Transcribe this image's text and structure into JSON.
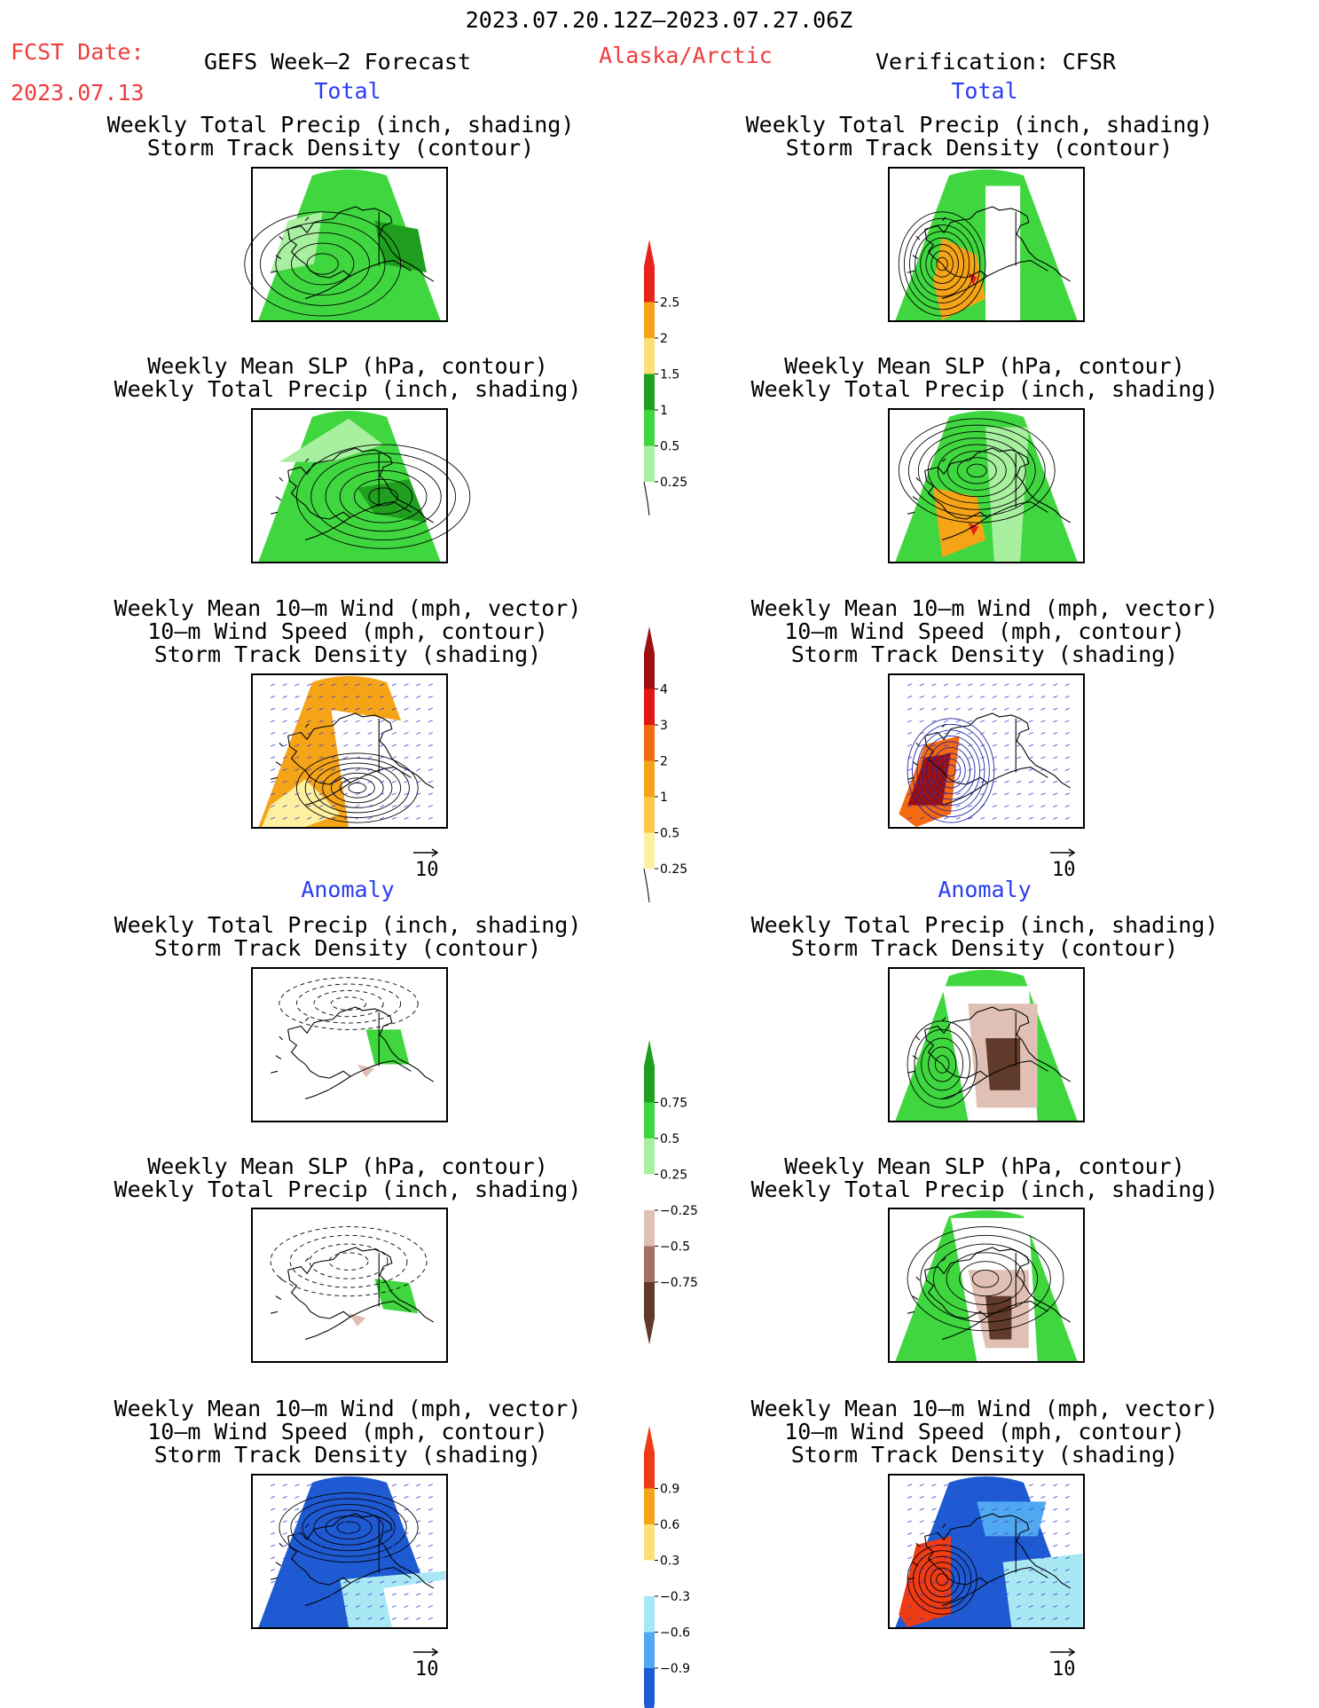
{
  "header": {
    "period": "2023.07.20.12Z–2023.07.27.06Z",
    "fcst_date_label": "FCST Date:",
    "fcst_date_value": "2023.07.13",
    "forecast_title": "GEFS Week–2 Forecast",
    "region": "Alaska/Arctic",
    "verification": "Verification: CFSR"
  },
  "sections": {
    "total": "Total",
    "anomaly": "Anomaly"
  },
  "titles": {
    "precip_track": [
      "Weekly Total Precip (inch, shading)",
      "Storm Track Density (contour)"
    ],
    "slp_precip": [
      "Weekly Mean SLP (hPa, contour)",
      "Weekly Total Precip (inch, shading)"
    ],
    "wind_track": [
      "Weekly Mean 10–m Wind (mph, vector)",
      "10–m Wind Speed (mph, contour)",
      "Storm Track Density (shading)"
    ]
  },
  "vector_ref": "10",
  "colorbars": [
    {
      "name": "total-precip",
      "labels": [
        "2.5",
        "2",
        "1.5",
        "1",
        "0.5",
        "0.25"
      ],
      "colors": [
        "#e8231e",
        "#f5a418",
        "#fbe07a",
        "#1f9e1f",
        "#3fd63f",
        "#a8efa0"
      ]
    },
    {
      "name": "total-track",
      "labels": [
        "4",
        "3",
        "2",
        "1",
        "0.5",
        "0.25"
      ],
      "colors": [
        "#9e1010",
        "#e01818",
        "#f56a10",
        "#f5a418",
        "#fbc848",
        "#fdf0a0"
      ]
    },
    {
      "name": "anom-precip",
      "labels": [
        "0.75",
        "0.5",
        "0.25",
        "−0.25",
        "−0.5",
        "−0.75"
      ],
      "colors": [
        "#1f9e1f",
        "#3fd63f",
        "#a8efa0",
        "#ffffff",
        "#e0c0b4",
        "#a07060",
        "#603a2a"
      ]
    },
    {
      "name": "anom-track",
      "labels": [
        "0.9",
        "0.6",
        "0.3",
        "−0.3",
        "−0.6",
        "−0.9"
      ],
      "colors": [
        "#f03c14",
        "#f5a418",
        "#fbe07a",
        "#ffffff",
        "#a8e8f5",
        "#50a8f0",
        "#1e5ad2"
      ]
    }
  ],
  "map_colors": {
    "total_precip_fcst": "#3fd63f",
    "total_precip_cfsr": "#3fd63f",
    "track_fcst": "#f5a418",
    "track_cfsr": "#9e1010",
    "anom_fcst_wind": "#1e5ad2",
    "anom_cfsr_wind_pos": "#f03c14"
  }
}
